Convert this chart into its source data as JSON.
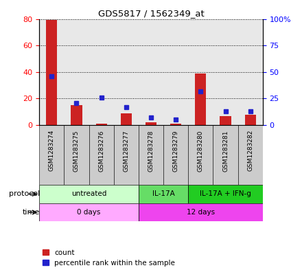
{
  "title": "GDS5817 / 1562349_at",
  "samples": [
    "GSM1283274",
    "GSM1283275",
    "GSM1283276",
    "GSM1283277",
    "GSM1283278",
    "GSM1283279",
    "GSM1283280",
    "GSM1283281",
    "GSM1283282"
  ],
  "counts": [
    79,
    15,
    1,
    9,
    2,
    1,
    39,
    7,
    8
  ],
  "percentiles": [
    46,
    21,
    26,
    17,
    7,
    5,
    32,
    13,
    13
  ],
  "ylim_left": [
    0,
    80
  ],
  "ylim_right": [
    0,
    100
  ],
  "yticks_left": [
    0,
    20,
    40,
    60,
    80
  ],
  "yticks_right": [
    0,
    25,
    50,
    75,
    100
  ],
  "ytick_labels_right": [
    "0",
    "25",
    "50",
    "75",
    "100%"
  ],
  "bar_color": "#cc2222",
  "pct_color": "#2222cc",
  "protocol_groups": [
    {
      "label": "untreated",
      "start": 0,
      "end": 4,
      "color": "#ccffcc"
    },
    {
      "label": "IL-17A",
      "start": 4,
      "end": 6,
      "color": "#66dd66"
    },
    {
      "label": "IL-17A + IFN-g",
      "start": 6,
      "end": 9,
      "color": "#22cc22"
    }
  ],
  "time_groups": [
    {
      "label": "0 days",
      "start": 0,
      "end": 4,
      "color": "#ffaaff"
    },
    {
      "label": "12 days",
      "start": 4,
      "end": 9,
      "color": "#ee44ee"
    }
  ],
  "sample_bg_color": "#cccccc",
  "protocol_label": "protocol",
  "time_label": "time",
  "legend_items": [
    {
      "color": "#cc2222",
      "label": "count"
    },
    {
      "color": "#2222cc",
      "label": "percentile rank within the sample"
    }
  ]
}
